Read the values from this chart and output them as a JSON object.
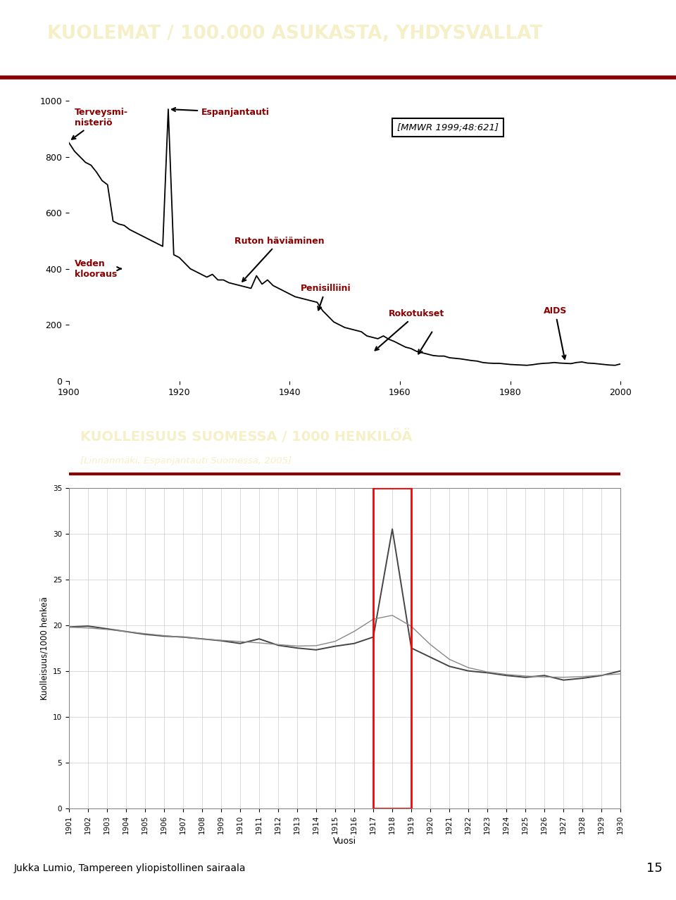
{
  "slide_bg": "#FFFFFF",
  "header_bg": "#0D1142",
  "header_text_color": "#F5F0C8",
  "header_text": "KUOLEMAT / 100.000 ASUKASTA, YHDYSVALLAT",
  "header_line_color": "#8B0000",
  "outer_border_color": "#1A237E",
  "footer_text": "Jukka Lumio, Tampereen yliopistollinen sairaala",
  "footer_number": "15",
  "panel1_bg": "#FFFFFF",
  "panel2_header_bg": "#0D1142",
  "panel2_header_text_color": "#F5F0C8",
  "panel2_title": "KUOLLEISUUS SUOMESSA / 1000 HENKILÖÄ",
  "panel2_subtitle": "[Linnanmäki, Espanjantauti Suomessa, 2005]",
  "panel2_chart_bg": "#FFFFFF",
  "reference_box_text": "[MMWR 1999;48:621]",
  "annotations_color": "#8B0000",
  "us_data_years": [
    1900,
    1901,
    1902,
    1903,
    1904,
    1905,
    1906,
    1907,
    1908,
    1909,
    1910,
    1911,
    1912,
    1913,
    1914,
    1915,
    1916,
    1917,
    1918,
    1919,
    1920,
    1921,
    1922,
    1923,
    1924,
    1925,
    1926,
    1927,
    1928,
    1929,
    1930,
    1931,
    1932,
    1933,
    1934,
    1935,
    1936,
    1937,
    1938,
    1939,
    1940,
    1941,
    1942,
    1943,
    1944,
    1945,
    1946,
    1947,
    1948,
    1949,
    1950,
    1951,
    1952,
    1953,
    1954,
    1955,
    1956,
    1957,
    1958,
    1959,
    1960,
    1961,
    1962,
    1963,
    1964,
    1965,
    1966,
    1967,
    1968,
    1969,
    1970,
    1971,
    1972,
    1973,
    1974,
    1975,
    1976,
    1977,
    1978,
    1979,
    1980,
    1981,
    1982,
    1983,
    1984,
    1985,
    1986,
    1987,
    1988,
    1989,
    1990,
    1991,
    1992,
    1993,
    1994,
    1995,
    1996,
    1997,
    1998,
    1999,
    2000
  ],
  "us_data_vals": [
    850,
    820,
    800,
    780,
    770,
    745,
    715,
    700,
    570,
    560,
    555,
    540,
    530,
    520,
    510,
    500,
    490,
    480,
    970,
    450,
    440,
    420,
    400,
    390,
    380,
    370,
    380,
    360,
    360,
    350,
    345,
    340,
    335,
    330,
    375,
    345,
    360,
    340,
    330,
    320,
    310,
    300,
    295,
    290,
    285,
    280,
    250,
    230,
    210,
    200,
    190,
    185,
    180,
    175,
    160,
    155,
    150,
    160,
    148,
    140,
    130,
    120,
    115,
    105,
    100,
    95,
    90,
    88,
    88,
    82,
    80,
    78,
    75,
    72,
    70,
    65,
    63,
    62,
    62,
    60,
    58,
    57,
    56,
    55,
    57,
    60,
    62,
    63,
    65,
    63,
    62,
    61,
    65,
    67,
    63,
    62,
    60,
    58,
    56,
    55,
    60
  ],
  "fi_data_years": [
    1901,
    1902,
    1903,
    1904,
    1905,
    1906,
    1907,
    1908,
    1909,
    1910,
    1911,
    1912,
    1913,
    1914,
    1915,
    1916,
    1917,
    1918,
    1919,
    1920,
    1921,
    1922,
    1923,
    1924,
    1925,
    1926,
    1927,
    1928,
    1929,
    1930
  ],
  "fi_data_vals": [
    19.8,
    19.9,
    19.6,
    19.3,
    19.0,
    18.8,
    18.7,
    18.5,
    18.3,
    18.0,
    18.5,
    17.8,
    17.5,
    17.3,
    17.7,
    18.0,
    18.7,
    30.5,
    17.5,
    16.5,
    15.5,
    15.0,
    14.8,
    14.5,
    14.3,
    14.5,
    14.0,
    14.2,
    14.5,
    15.0
  ]
}
